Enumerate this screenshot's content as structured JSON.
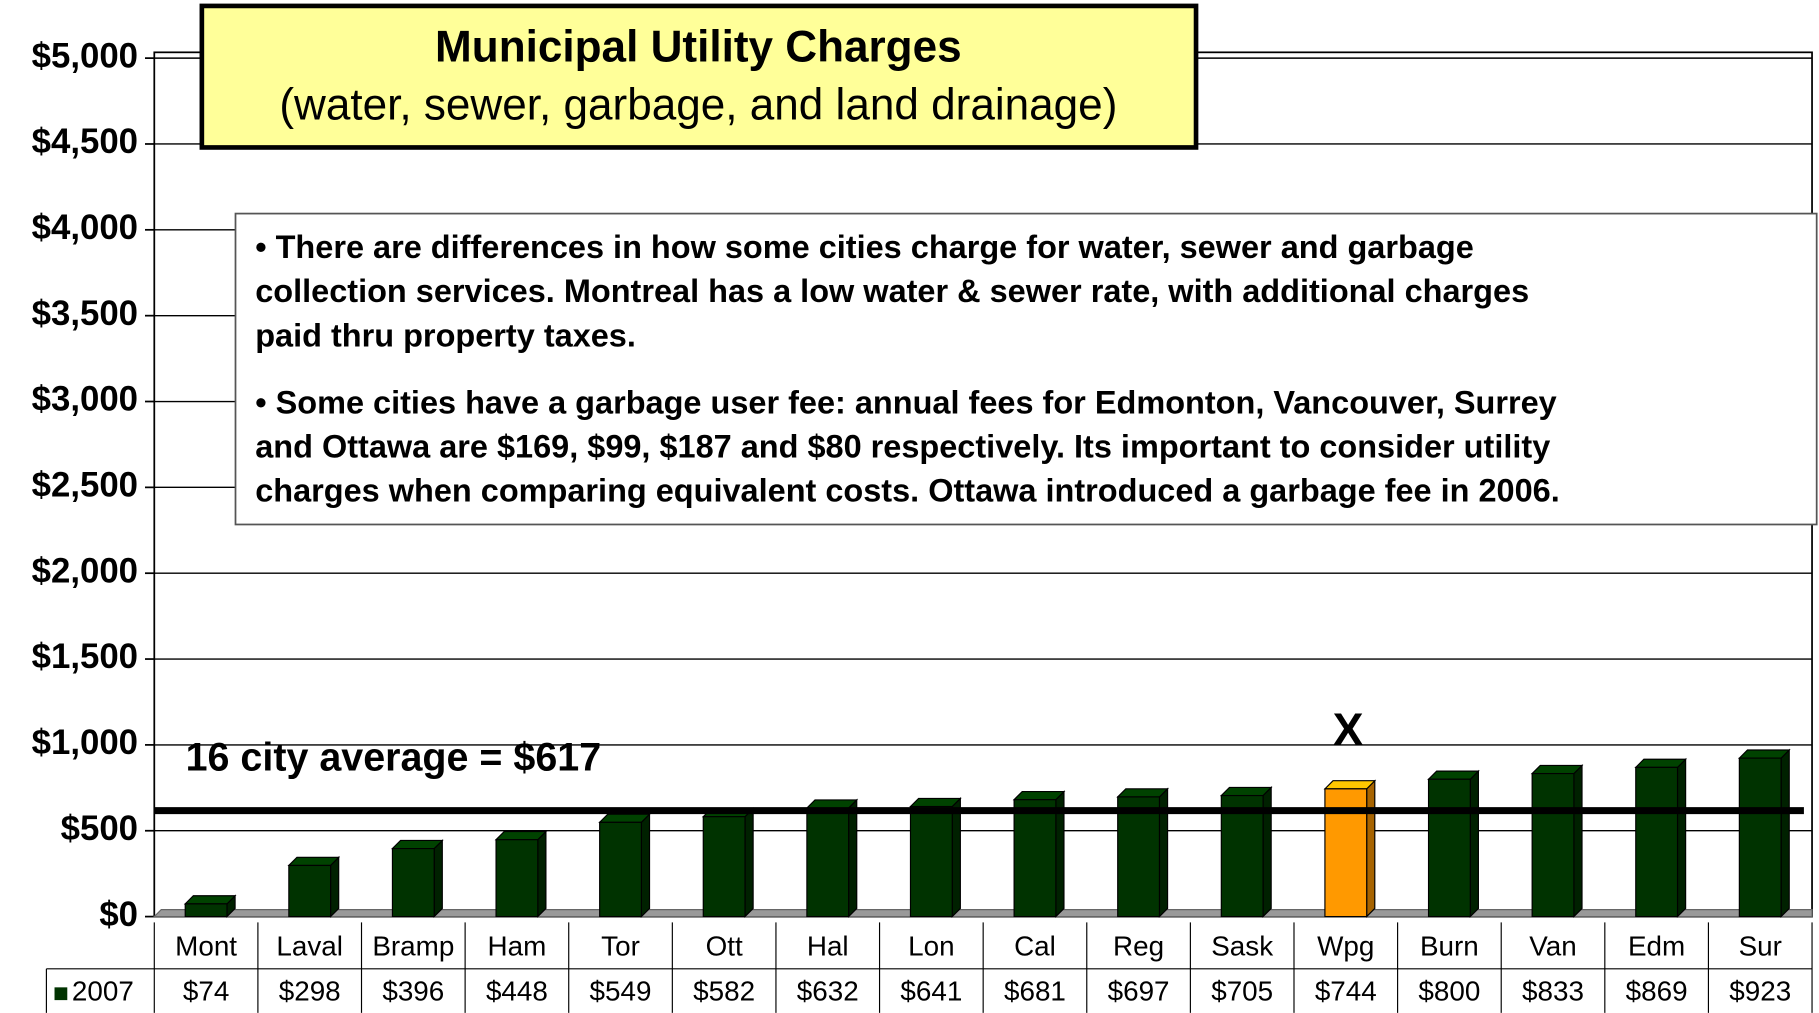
{
  "chart_data": {
    "type": "bar3d",
    "title": "Municipal Utility Charges",
    "subtitle": "(water, sewer, garbage, and land drainage)",
    "notes": [
      [
        "• There are differences in how some cities charge for water, sewer and garbage",
        "collection services.  Montreal has a low water & sewer rate, with additional charges",
        "paid thru property taxes."
      ],
      [
        "• Some cities have a garbage user fee:  annual fees for Edmonton, Vancouver, Surrey",
        "and Ottawa are $169, $99, $187 and $80 respectively.  Its important to consider utility",
        "charges when comparing equivalent costs.  Ottawa introduced a garbage fee in 2006."
      ]
    ],
    "categories": [
      "Mont",
      "Laval",
      "Bramp",
      "Ham",
      "Tor",
      "Ott",
      "Hal",
      "Lon",
      "Cal",
      "Reg",
      "Sask",
      "Wpg",
      "Burn",
      "Van",
      "Edm",
      "Sur"
    ],
    "series": [
      {
        "name": "2007",
        "color": "#003300",
        "colors": [
          "#003300",
          "#003300",
          "#003300",
          "#003300",
          "#003300",
          "#003300",
          "#003300",
          "#003300",
          "#003300",
          "#003300",
          "#003300",
          "#ff9900",
          "#003300",
          "#003300",
          "#003300",
          "#003300"
        ],
        "values": [
          74,
          298,
          396,
          448,
          549,
          582,
          632,
          641,
          681,
          697,
          705,
          744,
          800,
          833,
          869,
          923
        ],
        "value_labels": [
          "$74",
          "$298",
          "$396",
          "$448",
          "$549",
          "$582",
          "$632",
          "$641",
          "$681",
          "$697",
          "$705",
          "$744",
          "$800",
          "$833",
          "$869",
          "$923"
        ]
      }
    ],
    "average": 617,
    "average_label": "16 city average = $617",
    "annotation": "X",
    "annotation_index": 11,
    "ylim": [
      0,
      5000
    ],
    "yticks": [
      {
        "value": 0,
        "label": "$0"
      },
      {
        "value": 500,
        "label": "$500"
      },
      {
        "value": 1000,
        "label": "$1,000"
      },
      {
        "value": 1500,
        "label": "$1,500"
      },
      {
        "value": 2000,
        "label": "$2,000"
      },
      {
        "value": 2500,
        "label": "$2,500"
      },
      {
        "value": 3000,
        "label": "$3,000"
      },
      {
        "value": 3500,
        "label": "$3,500"
      },
      {
        "value": 4000,
        "label": "$4,000"
      },
      {
        "value": 4500,
        "label": "$4,500"
      },
      {
        "value": 5000,
        "label": "$5,000"
      }
    ],
    "grid": true
  }
}
